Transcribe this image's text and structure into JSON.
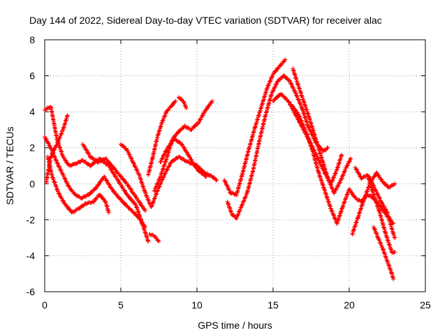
{
  "chart_data": {
    "type": "scatter",
    "title": "Day 144 of 2022, Sidereal Day-to-day VTEC variation (SDTVAR) for receiver alac",
    "xlabel": "GPS time / hours",
    "ylabel": "SDTVAR / TECUs",
    "xlim": [
      0,
      25
    ],
    "ylim": [
      -6,
      8
    ],
    "xticks": [
      0,
      5,
      10,
      15,
      20,
      25
    ],
    "yticks": [
      -6,
      -4,
      -2,
      0,
      2,
      4,
      6,
      8
    ],
    "grid": true,
    "marker": "+",
    "color": "#ff0000",
    "series": [
      {
        "name": "track-1",
        "points": [
          [
            0.0,
            4.1
          ],
          [
            0.4,
            4.3
          ],
          [
            0.8,
            2.5
          ],
          [
            1.2,
            1.5
          ],
          [
            1.6,
            1.0
          ],
          [
            2.0,
            1.1
          ],
          [
            2.5,
            1.3
          ],
          [
            3.0,
            1.0
          ],
          [
            3.6,
            1.4
          ],
          [
            4.2,
            1.0
          ],
          [
            4.8,
            0.2
          ],
          [
            5.4,
            -0.6
          ],
          [
            6.0,
            -1.2
          ],
          [
            6.4,
            -2.2
          ],
          [
            6.8,
            -3.2
          ]
        ]
      },
      {
        "name": "track-2",
        "points": [
          [
            0.0,
            2.6
          ],
          [
            0.4,
            2.0
          ],
          [
            0.8,
            1.2
          ],
          [
            1.2,
            0.5
          ],
          [
            1.6,
            -0.2
          ],
          [
            2.0,
            -0.6
          ],
          [
            2.4,
            -0.8
          ],
          [
            2.9,
            -0.6
          ],
          [
            3.4,
            -0.2
          ],
          [
            3.9,
            0.4
          ],
          [
            4.4,
            -0.3
          ],
          [
            5.0,
            -0.9
          ],
          [
            5.6,
            -1.4
          ],
          [
            6.2,
            -1.9
          ],
          [
            6.6,
            -2.4
          ]
        ]
      },
      {
        "name": "track-3",
        "points": [
          [
            0.2,
            1.5
          ],
          [
            0.5,
            0.4
          ],
          [
            0.9,
            -0.5
          ],
          [
            1.3,
            -1.1
          ],
          [
            1.8,
            -1.6
          ],
          [
            2.2,
            -1.4
          ],
          [
            2.7,
            -1.1
          ],
          [
            3.2,
            -1.0
          ],
          [
            3.6,
            -0.6
          ],
          [
            4.0,
            -1.0
          ],
          [
            4.2,
            -1.6
          ]
        ]
      },
      {
        "name": "track-4",
        "points": [
          [
            0.1,
            0.1
          ],
          [
            0.4,
            1.5
          ],
          [
            0.8,
            2.2
          ],
          [
            1.2,
            3.0
          ],
          [
            1.5,
            3.8
          ]
        ]
      },
      {
        "name": "track-5",
        "points": [
          [
            2.5,
            2.2
          ],
          [
            3.0,
            1.5
          ],
          [
            3.5,
            1.2
          ],
          [
            4.0,
            1.4
          ],
          [
            4.6,
            0.8
          ],
          [
            5.0,
            0.4
          ],
          [
            5.4,
            0.0
          ],
          [
            5.8,
            -0.5
          ],
          [
            6.2,
            -1.0
          ],
          [
            6.6,
            -1.5
          ]
        ]
      },
      {
        "name": "track-6",
        "points": [
          [
            5.0,
            2.2
          ],
          [
            5.4,
            1.9
          ],
          [
            5.8,
            1.2
          ],
          [
            6.2,
            0.5
          ],
          [
            6.6,
            -0.5
          ],
          [
            7.0,
            -1.3
          ],
          [
            7.4,
            -0.4
          ],
          [
            7.8,
            0.4
          ],
          [
            8.3,
            1.2
          ],
          [
            8.8,
            1.5
          ],
          [
            9.4,
            1.2
          ],
          [
            10.0,
            1.0
          ],
          [
            10.5,
            0.6
          ],
          [
            11.0,
            0.4
          ],
          [
            11.3,
            0.2
          ]
        ]
      },
      {
        "name": "track-7",
        "points": [
          [
            6.8,
            0.5
          ],
          [
            7.1,
            1.5
          ],
          [
            7.4,
            2.6
          ],
          [
            7.7,
            3.4
          ],
          [
            8.0,
            4.0
          ],
          [
            8.3,
            4.3
          ],
          [
            8.6,
            4.6
          ]
        ]
      },
      {
        "name": "track-8",
        "points": [
          [
            7.2,
            -0.4
          ],
          [
            7.6,
            0.4
          ],
          [
            8.0,
            1.4
          ],
          [
            8.4,
            2.5
          ],
          [
            8.8,
            2.9
          ],
          [
            9.2,
            3.2
          ],
          [
            9.6,
            3.0
          ],
          [
            10.1,
            3.4
          ],
          [
            10.5,
            4.0
          ],
          [
            11.0,
            4.6
          ]
        ]
      },
      {
        "name": "track-9",
        "points": [
          [
            8.8,
            4.8
          ],
          [
            9.1,
            4.6
          ],
          [
            9.3,
            4.2
          ]
        ]
      },
      {
        "name": "track-10",
        "points": [
          [
            6.9,
            -2.8
          ],
          [
            7.2,
            -2.9
          ],
          [
            7.5,
            -3.2
          ]
        ]
      },
      {
        "name": "track-11",
        "points": [
          [
            7.6,
            1.2
          ],
          [
            8.0,
            1.9
          ],
          [
            8.5,
            2.5
          ],
          [
            9.0,
            2.2
          ],
          [
            9.5,
            1.5
          ],
          [
            10.0,
            0.8
          ],
          [
            10.6,
            0.4
          ]
        ]
      },
      {
        "name": "track-12",
        "points": [
          [
            11.8,
            0.2
          ],
          [
            12.2,
            -0.5
          ],
          [
            12.6,
            -0.6
          ],
          [
            13.0,
            0.6
          ],
          [
            13.4,
            1.9
          ],
          [
            13.8,
            3.1
          ],
          [
            14.2,
            4.2
          ],
          [
            14.6,
            5.3
          ],
          [
            15.0,
            6.1
          ],
          [
            15.4,
            6.5
          ],
          [
            15.8,
            6.9
          ]
        ]
      },
      {
        "name": "track-13",
        "points": [
          [
            12.0,
            -1.0
          ],
          [
            12.3,
            -1.7
          ],
          [
            12.6,
            -1.9
          ],
          [
            12.9,
            -1.3
          ],
          [
            13.3,
            -0.5
          ],
          [
            13.7,
            0.8
          ],
          [
            14.1,
            2.4
          ],
          [
            14.5,
            3.8
          ],
          [
            14.9,
            5.0
          ],
          [
            15.3,
            5.7
          ],
          [
            15.7,
            6.0
          ],
          [
            16.1,
            5.7
          ],
          [
            16.5,
            5.0
          ],
          [
            16.9,
            4.2
          ],
          [
            17.3,
            3.2
          ],
          [
            17.8,
            2.3
          ],
          [
            18.3,
            1.8
          ],
          [
            18.6,
            2.0
          ]
        ]
      },
      {
        "name": "track-14",
        "points": [
          [
            15.0,
            4.6
          ],
          [
            15.5,
            5.0
          ],
          [
            16.0,
            4.6
          ],
          [
            16.5,
            3.8
          ],
          [
            17.0,
            3.0
          ],
          [
            17.5,
            2.2
          ],
          [
            18.0,
            1.3
          ],
          [
            18.4,
            0.6
          ],
          [
            18.8,
            0.0
          ],
          [
            19.2,
            0.8
          ],
          [
            19.5,
            1.6
          ]
        ]
      },
      {
        "name": "track-15",
        "points": [
          [
            16.3,
            6.4
          ],
          [
            16.6,
            5.6
          ],
          [
            17.0,
            4.6
          ],
          [
            17.4,
            3.6
          ],
          [
            17.8,
            2.5
          ],
          [
            18.2,
            1.4
          ],
          [
            18.6,
            0.3
          ],
          [
            19.0,
            -0.5
          ],
          [
            19.4,
            0.1
          ],
          [
            19.8,
            0.9
          ],
          [
            20.1,
            1.4
          ]
        ]
      },
      {
        "name": "track-16",
        "points": [
          [
            16.2,
            4.4
          ],
          [
            16.7,
            3.8
          ],
          [
            17.2,
            2.8
          ],
          [
            17.6,
            1.8
          ],
          [
            18.0,
            0.6
          ],
          [
            18.4,
            -0.4
          ],
          [
            18.8,
            -1.4
          ],
          [
            19.2,
            -2.2
          ],
          [
            19.6,
            -1.2
          ],
          [
            20.0,
            -0.3
          ],
          [
            20.4,
            -0.8
          ],
          [
            20.8,
            -1.0
          ],
          [
            21.2,
            -0.6
          ],
          [
            21.6,
            -0.8
          ],
          [
            22.0,
            -1.2
          ],
          [
            22.5,
            -1.8
          ],
          [
            22.9,
            -2.2
          ]
        ]
      },
      {
        "name": "track-17",
        "points": [
          [
            20.4,
            0.9
          ],
          [
            20.8,
            0.3
          ],
          [
            21.2,
            0.5
          ],
          [
            21.6,
            -0.6
          ],
          [
            22.0,
            -1.6
          ],
          [
            22.4,
            -2.8
          ],
          [
            22.8,
            -3.8
          ],
          [
            23.0,
            -3.8
          ]
        ]
      },
      {
        "name": "track-18",
        "points": [
          [
            20.2,
            -2.8
          ],
          [
            20.6,
            -1.8
          ],
          [
            21.0,
            -0.8
          ],
          [
            21.4,
            0.1
          ],
          [
            21.8,
            0.6
          ],
          [
            22.2,
            0.1
          ],
          [
            22.6,
            -0.2
          ],
          [
            23.0,
            0.0
          ]
        ]
      },
      {
        "name": "track-19",
        "points": [
          [
            21.6,
            -2.4
          ],
          [
            21.9,
            -3.0
          ],
          [
            22.2,
            -3.6
          ],
          [
            22.5,
            -4.3
          ],
          [
            22.8,
            -5.0
          ],
          [
            22.9,
            -5.3
          ]
        ]
      },
      {
        "name": "track-20",
        "points": [
          [
            21.3,
            0.4
          ],
          [
            21.7,
            -0.3
          ],
          [
            22.1,
            -1.0
          ],
          [
            22.5,
            -1.6
          ],
          [
            22.9,
            -2.8
          ],
          [
            23.0,
            -3.0
          ]
        ]
      }
    ]
  }
}
